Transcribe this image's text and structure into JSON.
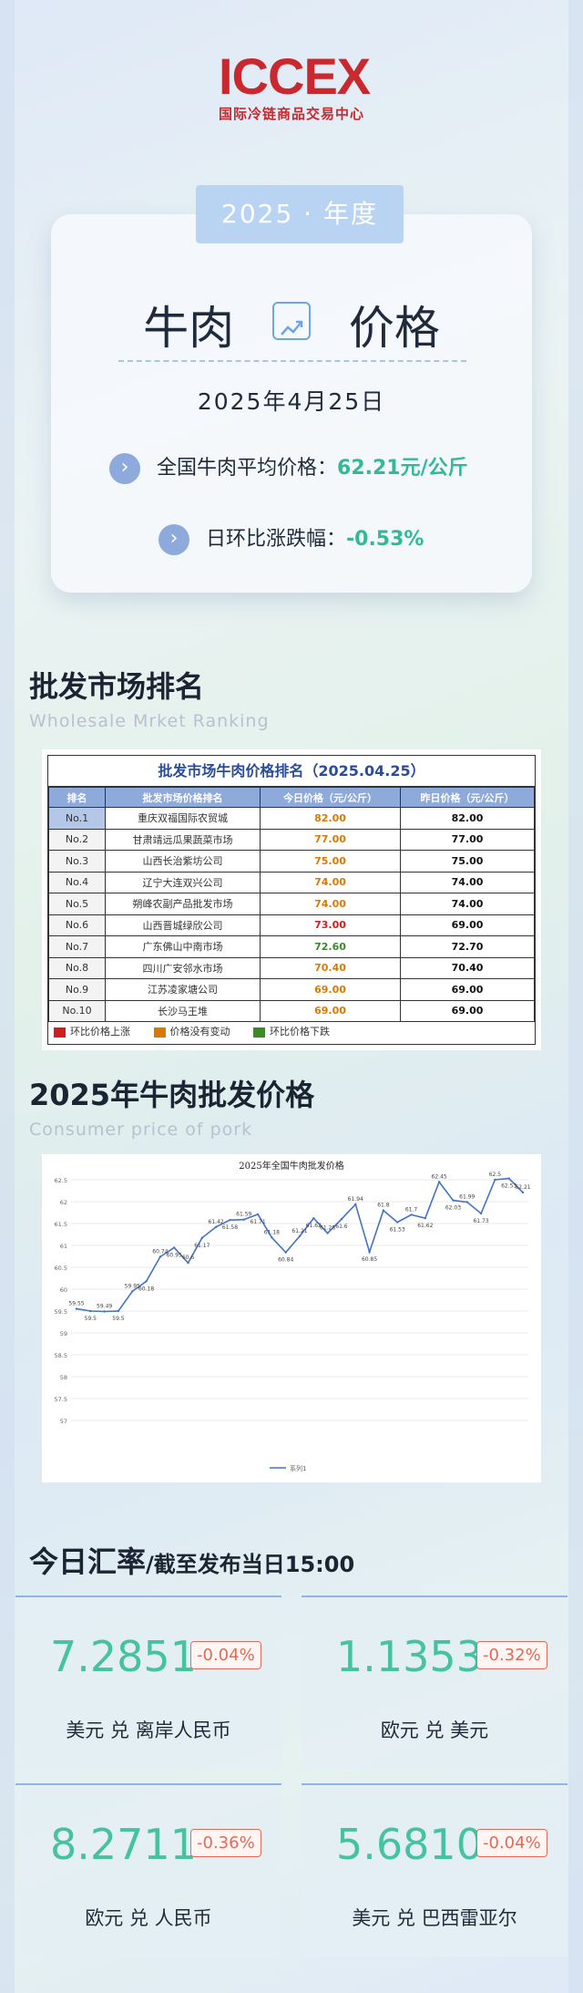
{
  "logo": {
    "mark": "ICCEX",
    "subtitle": "国际冷链商品交易中心"
  },
  "header": {
    "year_tab": "2025 · 年度",
    "title_left": "牛肉",
    "title_right": "价格",
    "date": "2025年4月25日",
    "avg_label": "全国牛肉平均价格：",
    "avg_value": "62.21元/公斤",
    "change_label": "日环比涨跌幅：",
    "change_value": "-0.53%"
  },
  "ranking_section": {
    "title": "批发市场排名",
    "subtitle": "Wholesale Mrket Ranking",
    "table_title": "批发市场牛肉价格排名（2025.04.25）",
    "columns": [
      "排名",
      "批发市场价格排名",
      "今日价格（元/公斤）",
      "昨日价格（元/公斤）"
    ],
    "rows": [
      {
        "rank": "No.1",
        "market": "重庆双福国际农贸城",
        "today": "82.00",
        "yesterday": "82.00",
        "status": "same"
      },
      {
        "rank": "No.2",
        "market": "甘肃靖远瓜果蔬菜市场",
        "today": "77.00",
        "yesterday": "77.00",
        "status": "same"
      },
      {
        "rank": "No.3",
        "market": "山西长治紫坊公司",
        "today": "75.00",
        "yesterday": "75.00",
        "status": "same"
      },
      {
        "rank": "No.4",
        "market": "辽宁大连双兴公司",
        "today": "74.00",
        "yesterday": "74.00",
        "status": "same"
      },
      {
        "rank": "No.5",
        "market": "朔峰农副产品批发市场",
        "today": "74.00",
        "yesterday": "74.00",
        "status": "same"
      },
      {
        "rank": "No.6",
        "market": "山西晋城绿欣公司",
        "today": "73.00",
        "yesterday": "69.00",
        "status": "up"
      },
      {
        "rank": "No.7",
        "market": "广东佛山中南市场",
        "today": "72.60",
        "yesterday": "72.70",
        "status": "down"
      },
      {
        "rank": "No.8",
        "market": "四川广安邻水市场",
        "today": "70.40",
        "yesterday": "70.40",
        "status": "same"
      },
      {
        "rank": "No.9",
        "market": "江苏凌家塘公司",
        "today": "69.00",
        "yesterday": "69.00",
        "status": "same"
      },
      {
        "rank": "No.10",
        "market": "长沙马王堆",
        "today": "69.00",
        "yesterday": "69.00",
        "status": "same"
      }
    ],
    "legend": [
      {
        "label": "环比价格上涨",
        "color": "#d01d1d"
      },
      {
        "label": "价格没有变动",
        "color": "#d97a00"
      },
      {
        "label": "环比价格下跌",
        "color": "#3a8a28"
      }
    ]
  },
  "price_section": {
    "title": "2025年牛肉批发价格",
    "subtitle": "Consumer price of pork"
  },
  "chart_data": {
    "type": "line",
    "title": "2025年全国牛肉批发价格",
    "ylim": [
      57,
      62.5
    ],
    "yticks": [
      "57",
      "57.5",
      "58",
      "58.5",
      "59",
      "59.5",
      "60",
      "60.5",
      "61",
      "61.5",
      "62",
      "62.5"
    ],
    "grid": true,
    "legend": "bottom",
    "series": [
      {
        "name": "系列1",
        "color": "#4472c4",
        "values": [
          59.55,
          59.5,
          59.49,
          59.5,
          59.95,
          60.18,
          60.74,
          60.95,
          60.6,
          61.17,
          61.42,
          61.58,
          61.59,
          61.71,
          61.18,
          60.84,
          61.21,
          61.62,
          61.28,
          61.6,
          61.94,
          60.85,
          61.8,
          61.53,
          61.7,
          61.62,
          62.45,
          62.03,
          61.99,
          61.73,
          62.5,
          62.53,
          62.21
        ],
        "labels": [
          "59.55",
          "59.5",
          "59.49",
          "59.5",
          "59.95",
          "60.18",
          "60.74",
          "60.95",
          "60.6",
          "61.17",
          "61.42",
          "61.58",
          "61.59",
          "61.71",
          "61.18",
          "60.84",
          "61.21",
          "61.62",
          "61.28",
          "61.6",
          "61.94",
          "60.85",
          "61.8",
          "61.53",
          "61.7",
          "61.62",
          "62.45",
          "62.03",
          "61.99",
          "61.73",
          "62.5",
          "62.53",
          "62.21"
        ]
      }
    ]
  },
  "fx_section": {
    "title": "今日汇率",
    "title_suffix": "/截至发布当日15:00",
    "cards": [
      {
        "value": "7.2851",
        "change": "-0.04%",
        "label": "美元 兑 离岸人民币"
      },
      {
        "value": "1.1353",
        "change": "-0.32%",
        "label": "欧元 兑 美元"
      },
      {
        "value": "8.2711",
        "change": "-0.36%",
        "label": "欧元 兑 人民币"
      },
      {
        "value": "5.6810",
        "change": "-0.04%",
        "label": "美元 兑 巴西雷亚尔"
      }
    ]
  }
}
